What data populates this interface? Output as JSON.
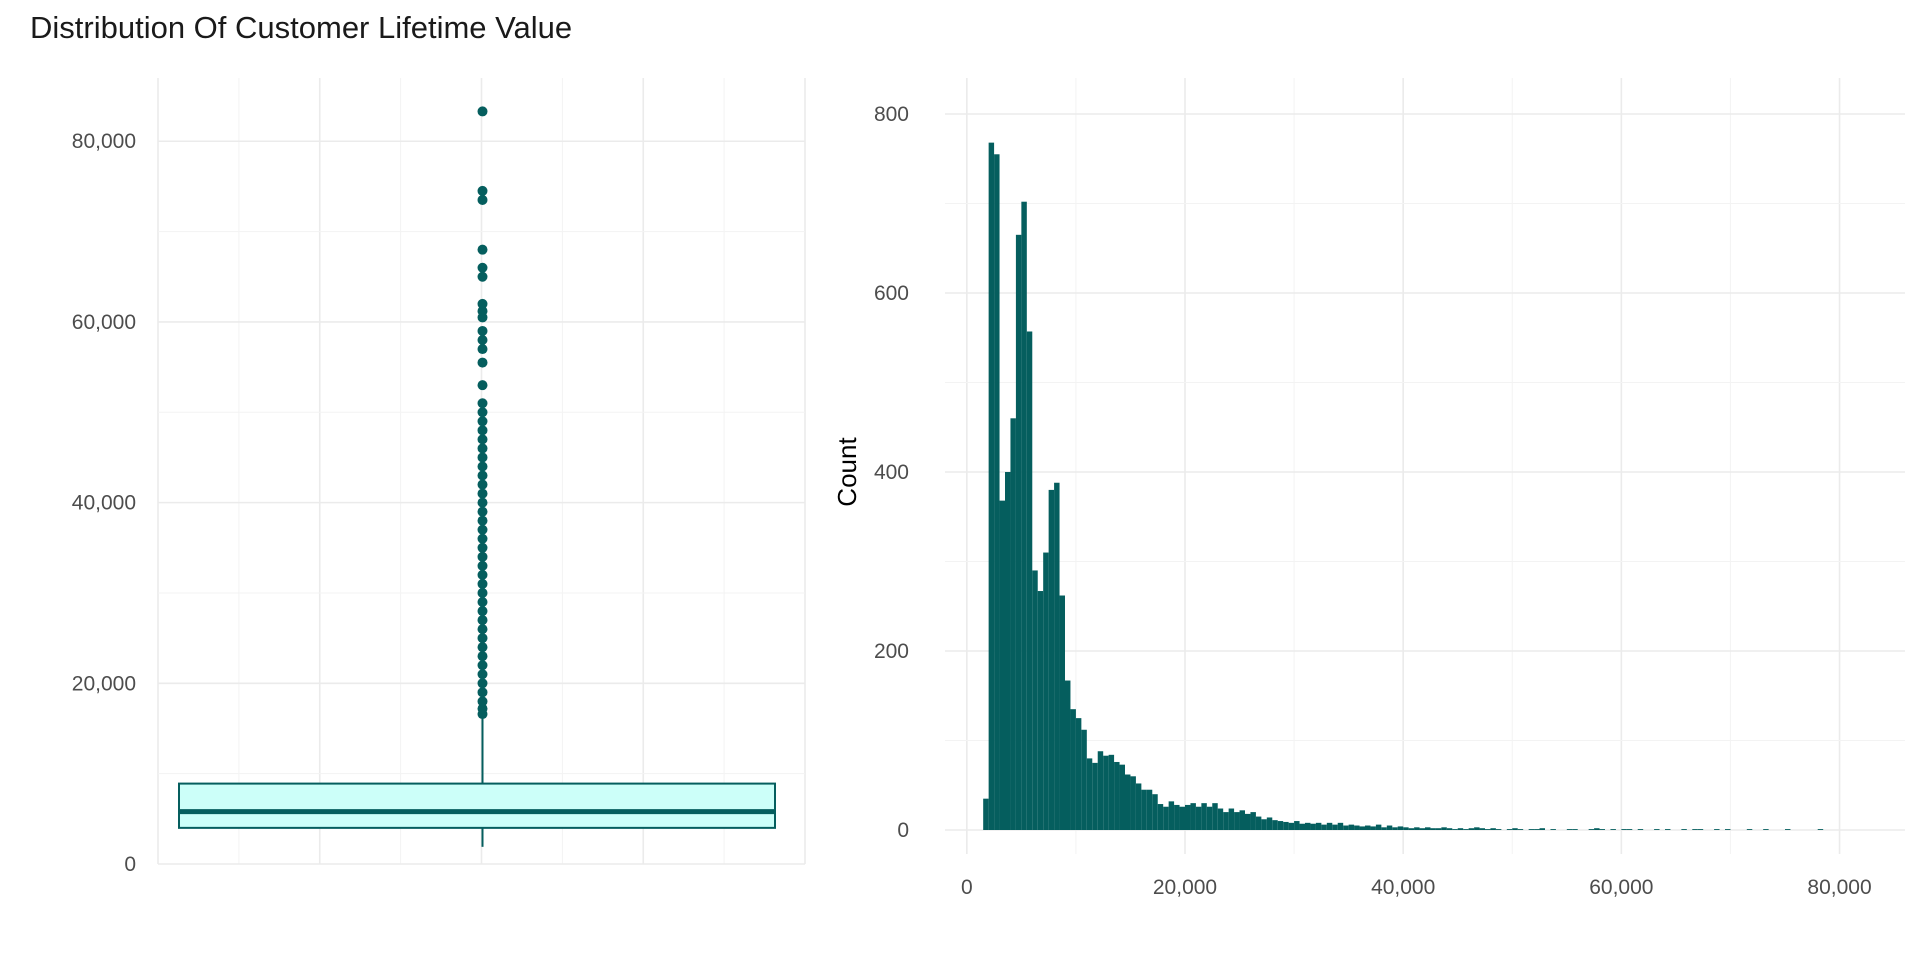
{
  "title": "Distribution Of Customer Lifetime Value",
  "colors": {
    "fill": "#055e5e",
    "box_fill": "#ccfff9",
    "grid": "#ebebeb",
    "text": "#4d4d4d"
  },
  "chart_data": [
    {
      "type": "boxplot",
      "ylim": [
        0,
        87000
      ],
      "y_ticks": [
        0,
        20000,
        40000,
        60000,
        80000
      ],
      "y_tick_labels": [
        "0",
        "20,000",
        "40,000",
        "60,000",
        "80,000"
      ],
      "grid": true,
      "box": {
        "min": 1900,
        "q1": 4000,
        "median": 5800,
        "q3": 8900,
        "whisker_high": 16400
      },
      "outliers": [
        16600,
        17200,
        18000,
        19000,
        20000,
        21000,
        22000,
        23000,
        24000,
        25000,
        26000,
        27000,
        28000,
        29000,
        30000,
        31000,
        32000,
        33000,
        34000,
        35000,
        36000,
        37000,
        38000,
        39000,
        40000,
        41000,
        42000,
        43000,
        44000,
        45000,
        46000,
        47000,
        48000,
        49000,
        50000,
        51000,
        53000,
        55500,
        57000,
        58000,
        59000,
        60500,
        61200,
        62000,
        65000,
        66000,
        68000,
        73500,
        74500,
        83300
      ]
    },
    {
      "type": "histogram",
      "ylabel": "Count",
      "xlim": [
        -2000,
        86000
      ],
      "ylim": [
        0,
        800
      ],
      "x_ticks": [
        0,
        20000,
        40000,
        60000,
        80000
      ],
      "x_tick_labels": [
        "0",
        "20,000",
        "40,000",
        "60,000",
        "80,000"
      ],
      "y_ticks": [
        0,
        200,
        400,
        600,
        800
      ],
      "y_tick_labels": [
        "0",
        "200",
        "400",
        "600",
        "800"
      ],
      "grid": true,
      "bin_start": 1500,
      "bin_width": 500,
      "counts": [
        35,
        768,
        755,
        368,
        400,
        460,
        665,
        702,
        557,
        290,
        267,
        310,
        380,
        388,
        262,
        167,
        135,
        125,
        112,
        80,
        75,
        88,
        83,
        84,
        76,
        73,
        62,
        60,
        52,
        45,
        45,
        40,
        29,
        26,
        32,
        28,
        26,
        28,
        30,
        26,
        30,
        26,
        30,
        24,
        20,
        24,
        20,
        22,
        18,
        20,
        15,
        12,
        14,
        11,
        10,
        9,
        8,
        10,
        7,
        8,
        7,
        8,
        6,
        8,
        6,
        8,
        5,
        6,
        5,
        4,
        5,
        4,
        6,
        3,
        5,
        3,
        4,
        3,
        2,
        3,
        2,
        3,
        2,
        2,
        3,
        2,
        1,
        2,
        1,
        2,
        3,
        2,
        1,
        2,
        1,
        0,
        1,
        2,
        1,
        0,
        1,
        1,
        2,
        0,
        1,
        0,
        0,
        1,
        1,
        0,
        0,
        1,
        2,
        1,
        0,
        1,
        0,
        1,
        1,
        0,
        1,
        0,
        0,
        1,
        0,
        1,
        0,
        0,
        1,
        0,
        1,
        1,
        0,
        0,
        1,
        0,
        1,
        0,
        0,
        0,
        1,
        0,
        0,
        1,
        0,
        0,
        0,
        1,
        0,
        0,
        0,
        0,
        0,
        1,
        0,
        0,
        0,
        0,
        0,
        0,
        0,
        0,
        0,
        0,
        0,
        0,
        0,
        0,
        0,
        0,
        0,
        0,
        0,
        1,
        0,
        0,
        0,
        0,
        0,
        0,
        0,
        0,
        0,
        0,
        0,
        0,
        0,
        0,
        0,
        0,
        0,
        0,
        0,
        0,
        0,
        0,
        0,
        0,
        0,
        0,
        0,
        0,
        0,
        0,
        0,
        0,
        0,
        0,
        0,
        0,
        0,
        0,
        0,
        0,
        0,
        0,
        0,
        0,
        0,
        0,
        0,
        0,
        0,
        0,
        0,
        0,
        0,
        0,
        0,
        0,
        0,
        0,
        0,
        0,
        0,
        0,
        0,
        0,
        0,
        0,
        0,
        0,
        0,
        0,
        0,
        0,
        0,
        0,
        0,
        0,
        0,
        0,
        0,
        0,
        0,
        0,
        0,
        0,
        0,
        0,
        0,
        0,
        0,
        0,
        0,
        0,
        0,
        0,
        0,
        0,
        0,
        0,
        0,
        0,
        0,
        0,
        0,
        0,
        0,
        0,
        0,
        0,
        0,
        0,
        0,
        0,
        0,
        1
      ]
    }
  ]
}
